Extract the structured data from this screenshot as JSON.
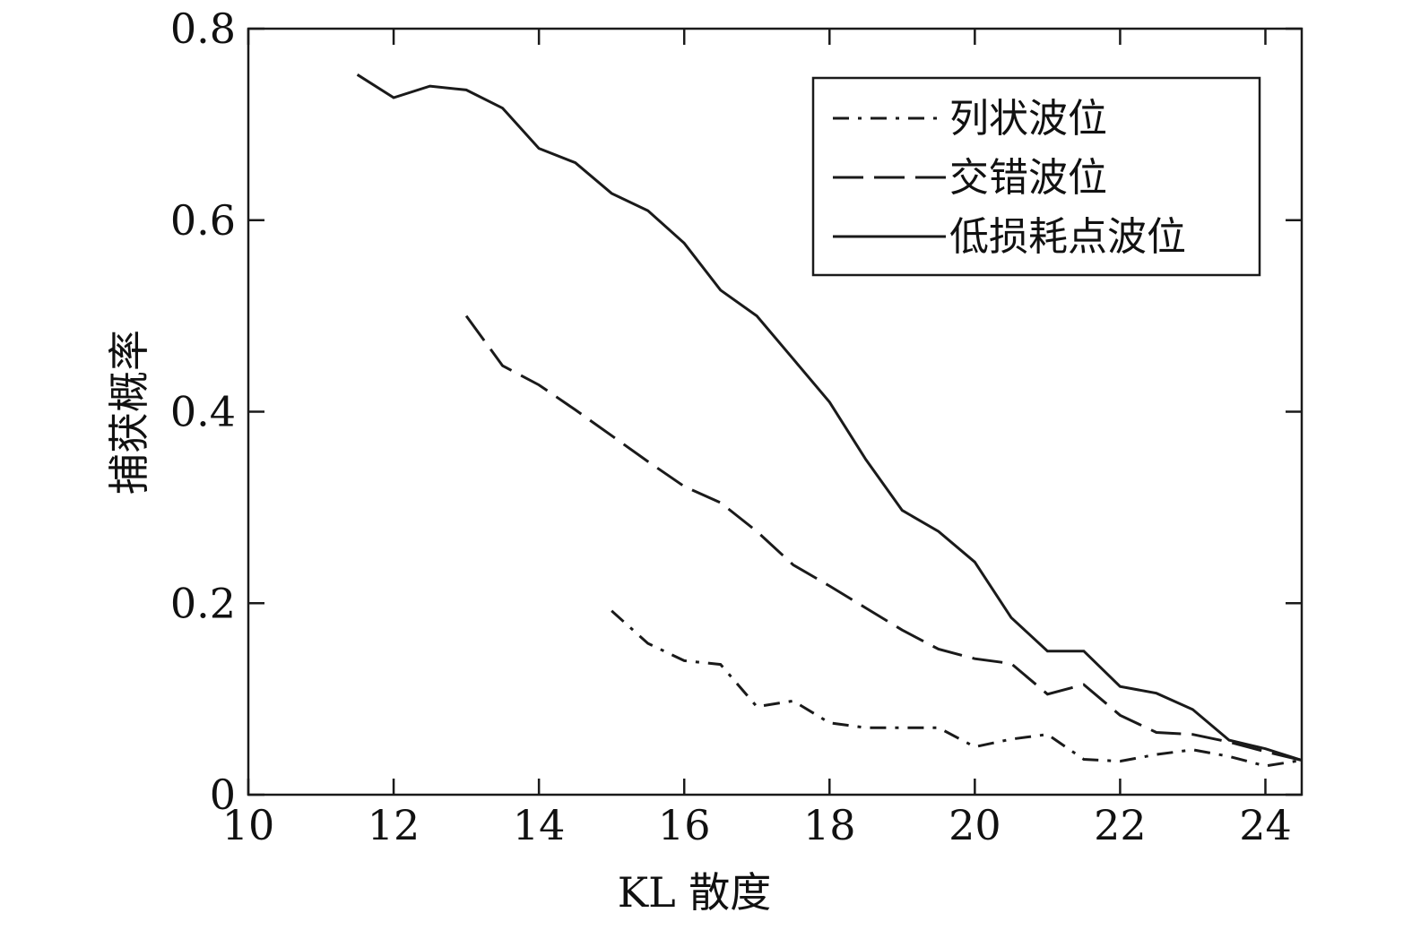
{
  "chart_data": {
    "type": "line",
    "title": "",
    "xlabel": "KL 散度",
    "ylabel": "捕获概率",
    "xlim": [
      10,
      24.5
    ],
    "ylim": [
      0,
      0.8
    ],
    "xticks": [
      10,
      12,
      14,
      16,
      18,
      20,
      22,
      24
    ],
    "yticks": [
      0,
      0.2,
      0.4,
      0.6,
      0.8
    ],
    "xtick_labels": [
      "10",
      "12",
      "14",
      "16",
      "18",
      "20",
      "22",
      "24"
    ],
    "ytick_labels": [
      "0",
      "0.2",
      "0.4",
      "0.6",
      "0.8"
    ],
    "grid": false,
    "legend_position": "top-right",
    "series": [
      {
        "name": "列状波位",
        "style": "dash-dot",
        "x": [
          15,
          15.5,
          16,
          16.5,
          17,
          17.5,
          18,
          18.5,
          19,
          19.5,
          20,
          20.5,
          21,
          21.5,
          22,
          22.5,
          23,
          23.5,
          24,
          24.5
        ],
        "y": [
          0.192,
          0.158,
          0.14,
          0.136,
          0.092,
          0.098,
          0.075,
          0.07,
          0.07,
          0.07,
          0.05,
          0.058,
          0.063,
          0.037,
          0.035,
          0.042,
          0.047,
          0.04,
          0.03,
          0.036
        ]
      },
      {
        "name": "交错波位",
        "style": "dashed",
        "x": [
          13,
          13.5,
          14,
          14.5,
          15,
          15.5,
          16,
          16.5,
          17,
          17.5,
          18,
          18.5,
          19,
          19.5,
          20,
          20.5,
          21,
          21.5,
          22,
          22.5,
          23,
          23.5,
          24,
          24.5
        ],
        "y": [
          0.5,
          0.448,
          0.428,
          0.402,
          0.375,
          0.348,
          0.322,
          0.305,
          0.275,
          0.24,
          0.218,
          0.195,
          0.172,
          0.152,
          0.142,
          0.137,
          0.105,
          0.115,
          0.083,
          0.065,
          0.063,
          0.055,
          0.045,
          0.036
        ]
      },
      {
        "name": "低损耗点波位",
        "style": "solid",
        "x": [
          11.5,
          12,
          12.5,
          13,
          13.5,
          14,
          14.5,
          15,
          15.5,
          16,
          16.5,
          17,
          17.5,
          18,
          18.5,
          19,
          19.5,
          20,
          20.5,
          21,
          21.5,
          22,
          22.5,
          23,
          23.5,
          24,
          24.5
        ],
        "y": [
          0.752,
          0.728,
          0.74,
          0.736,
          0.717,
          0.675,
          0.66,
          0.628,
          0.61,
          0.576,
          0.527,
          0.5,
          0.455,
          0.41,
          0.35,
          0.297,
          0.275,
          0.243,
          0.185,
          0.15,
          0.15,
          0.113,
          0.106,
          0.089,
          0.057,
          0.048,
          0.036
        ]
      }
    ]
  }
}
